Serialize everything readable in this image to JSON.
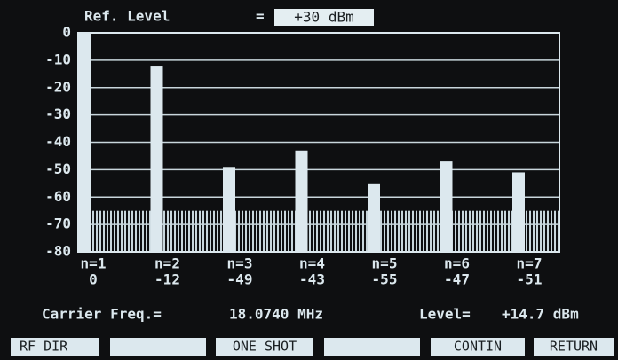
{
  "header": {
    "label": "Ref. Level",
    "equals": "=",
    "value": "+30 dBm"
  },
  "chart_data": {
    "type": "bar",
    "categories": [
      "n=1",
      "n=2",
      "n=3",
      "n=4",
      "n=5",
      "n=6",
      "n=7"
    ],
    "values": [
      0,
      -12,
      -49,
      -43,
      -55,
      -47,
      -51
    ],
    "color": "#dce8ee",
    "ylim": [
      -80,
      0
    ],
    "yticks": [
      0,
      -10,
      -20,
      -30,
      -40,
      -50,
      -60,
      -70,
      -80
    ],
    "grid": true,
    "noise_floor": -65
  },
  "footer": {
    "carrier_label": "Carrier Freq.=",
    "carrier_value": "18.0740 MHz",
    "level_label": "Level=",
    "level_value": "+14.7 dBm"
  },
  "softkeys": [
    "RF DIR",
    "ONE SHOT",
    "CONTIN",
    "RETURN"
  ]
}
